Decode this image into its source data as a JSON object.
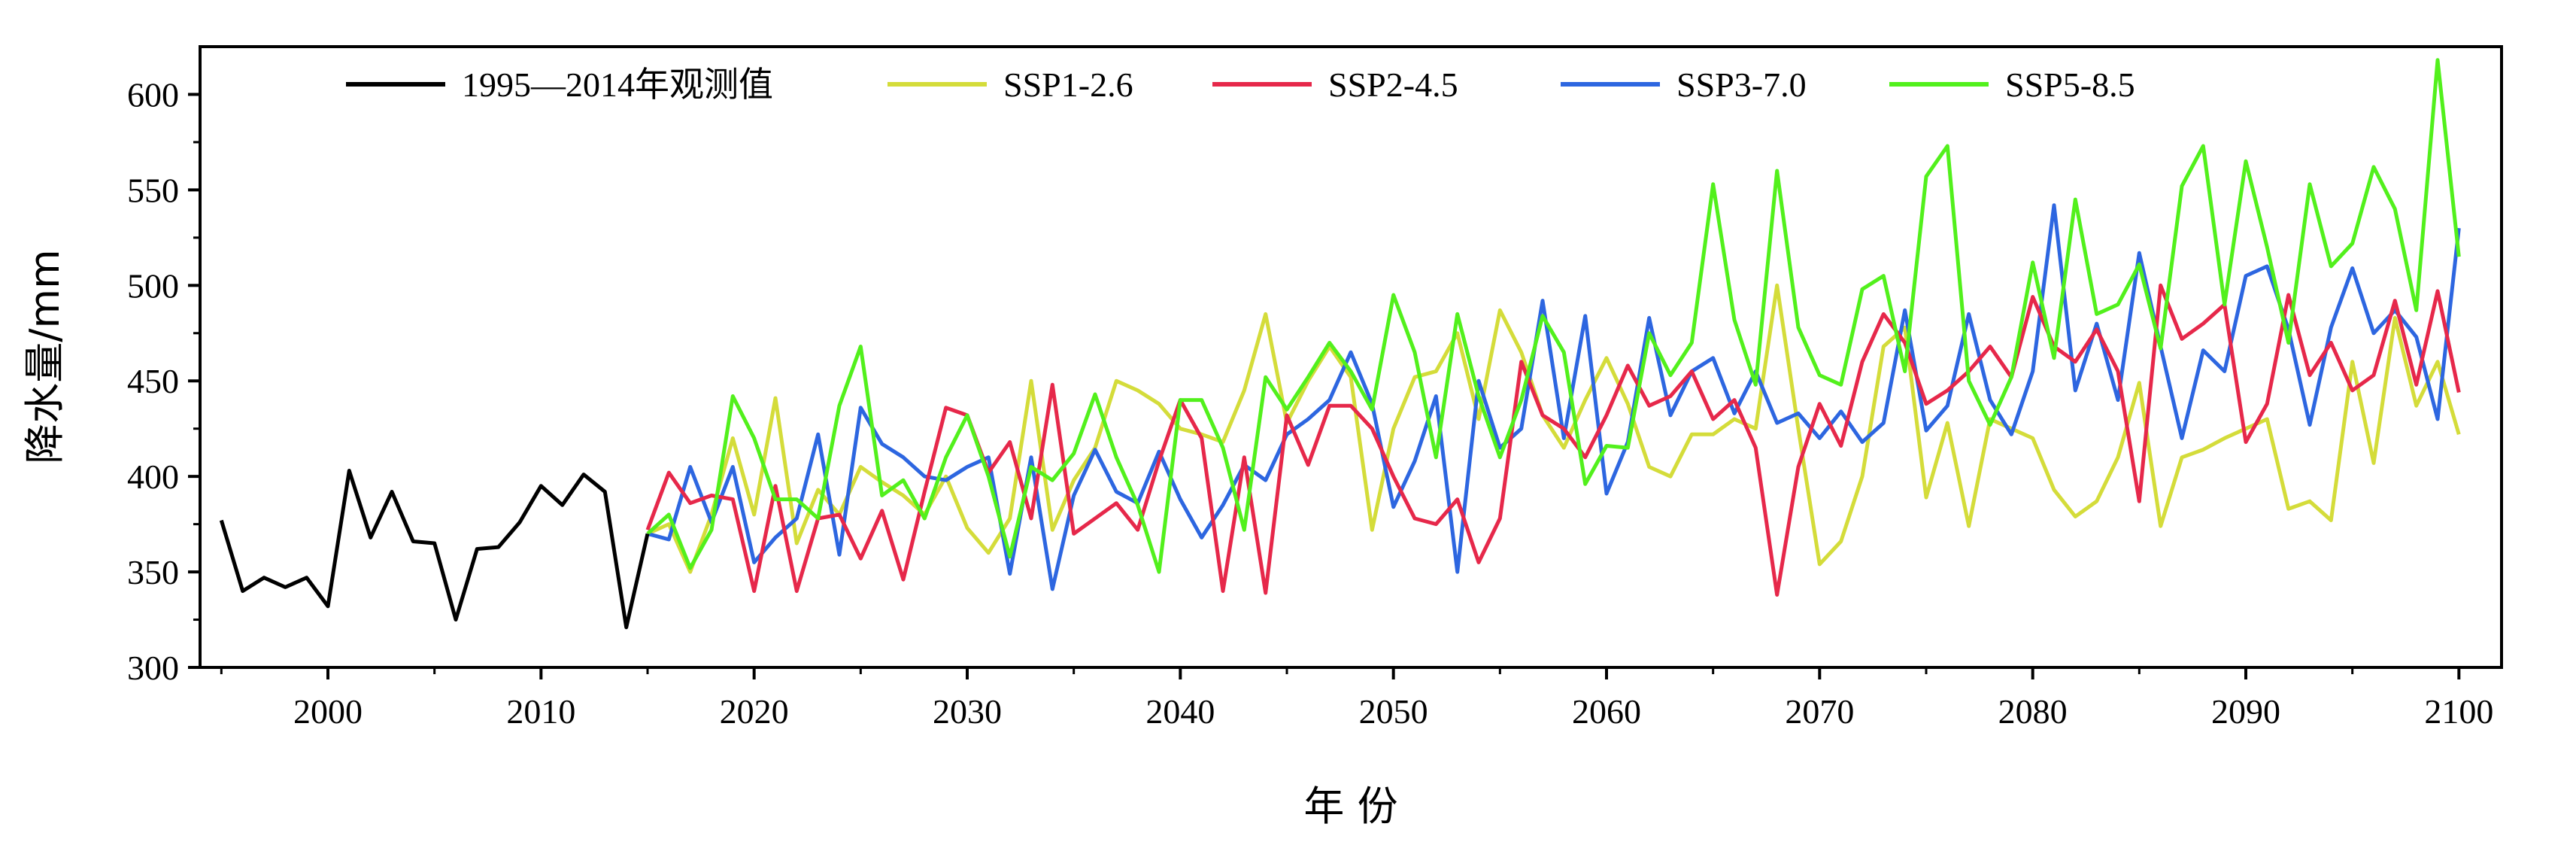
{
  "chart_data": {
    "type": "line",
    "title": "",
    "xlabel": "年 份",
    "ylabel": "降水量/mm",
    "xlim": [
      1994,
      2102
    ],
    "ylim": [
      300,
      625
    ],
    "xticks": [
      2000,
      2010,
      2020,
      2030,
      2040,
      2050,
      2060,
      2070,
      2080,
      2090,
      2100
    ],
    "yticks": [
      300,
      350,
      400,
      450,
      500,
      550,
      600
    ],
    "legend_position": "top",
    "series": [
      {
        "name": "1995—2014年观测值",
        "color": "#000000",
        "x": [
          1995,
          1996,
          1997,
          1998,
          1999,
          2000,
          2001,
          2002,
          2003,
          2004,
          2005,
          2006,
          2007,
          2008,
          2009,
          2010,
          2011,
          2012,
          2013,
          2014,
          2015
        ],
        "values": [
          377,
          340,
          347,
          342,
          347,
          332,
          403,
          368,
          392,
          366,
          365,
          325,
          362,
          363,
          376,
          395,
          385,
          401,
          392,
          321,
          370
        ]
      },
      {
        "name": "SSP1-2.6",
        "color": "#d4dc3a",
        "x": [
          2015,
          2016,
          2017,
          2018,
          2019,
          2020,
          2021,
          2022,
          2023,
          2024,
          2025,
          2026,
          2027,
          2028,
          2029,
          2030,
          2031,
          2032,
          2033,
          2034,
          2035,
          2036,
          2037,
          2038,
          2039,
          2040,
          2041,
          2042,
          2043,
          2044,
          2045,
          2046,
          2047,
          2048,
          2049,
          2050,
          2051,
          2052,
          2053,
          2054,
          2055,
          2056,
          2057,
          2058,
          2059,
          2060,
          2061,
          2062,
          2063,
          2064,
          2065,
          2066,
          2067,
          2068,
          2069,
          2070,
          2071,
          2072,
          2073,
          2074,
          2075,
          2076,
          2077,
          2078,
          2079,
          2080,
          2081,
          2082,
          2083,
          2084,
          2085,
          2086,
          2087,
          2088,
          2089,
          2090,
          2091,
          2092,
          2093,
          2094,
          2095,
          2096,
          2097,
          2098,
          2099,
          2100
        ],
        "values": [
          370,
          375,
          350,
          380,
          420,
          380,
          441,
          365,
          393,
          380,
          405,
          397,
          390,
          380,
          400,
          373,
          360,
          378,
          450,
          372,
          398,
          415,
          450,
          445,
          438,
          425,
          422,
          418,
          445,
          485,
          428,
          450,
          468,
          452,
          372,
          425,
          452,
          455,
          475,
          430,
          487,
          465,
          432,
          415,
          440,
          462,
          438,
          405,
          400,
          422,
          422,
          430,
          425,
          500,
          425,
          354,
          366,
          400,
          468,
          478,
          389,
          428,
          374,
          430,
          425,
          420,
          393,
          379,
          387,
          410,
          449,
          374,
          410,
          414,
          420,
          425,
          430,
          383,
          387,
          377,
          460,
          407,
          483,
          437,
          460,
          422
        ]
      },
      {
        "name": "SSP2-4.5",
        "color": "#e6284a",
        "x": [
          2015,
          2016,
          2017,
          2018,
          2019,
          2020,
          2021,
          2022,
          2023,
          2024,
          2025,
          2026,
          2027,
          2028,
          2029,
          2030,
          2031,
          2032,
          2033,
          2034,
          2035,
          2036,
          2037,
          2038,
          2039,
          2040,
          2041,
          2042,
          2043,
          2044,
          2045,
          2046,
          2047,
          2048,
          2049,
          2050,
          2051,
          2052,
          2053,
          2054,
          2055,
          2056,
          2057,
          2058,
          2059,
          2060,
          2061,
          2062,
          2063,
          2064,
          2065,
          2066,
          2067,
          2068,
          2069,
          2070,
          2071,
          2072,
          2073,
          2074,
          2075,
          2076,
          2077,
          2078,
          2079,
          2080,
          2081,
          2082,
          2083,
          2084,
          2085,
          2086,
          2087,
          2088,
          2089,
          2090,
          2091,
          2092,
          2093,
          2094,
          2095,
          2096,
          2097,
          2098,
          2099,
          2100
        ],
        "values": [
          372,
          402,
          386,
          390,
          388,
          340,
          395,
          340,
          378,
          380,
          357,
          382,
          346,
          392,
          436,
          432,
          402,
          418,
          378,
          448,
          370,
          378,
          386,
          372,
          408,
          440,
          420,
          340,
          410,
          339,
          432,
          406,
          437,
          437,
          425,
          400,
          378,
          375,
          388,
          355,
          378,
          460,
          432,
          425,
          410,
          432,
          458,
          437,
          442,
          455,
          430,
          440,
          415,
          338,
          405,
          438,
          416,
          460,
          485,
          470,
          438,
          445,
          455,
          468,
          452,
          494,
          468,
          460,
          477,
          455,
          387,
          500,
          472,
          480,
          490,
          418,
          438,
          495,
          453,
          470,
          445,
          453,
          492,
          448,
          497,
          444
        ]
      },
      {
        "name": "SSP3-7.0",
        "color": "#2d66e0",
        "x": [
          2015,
          2016,
          2017,
          2018,
          2019,
          2020,
          2021,
          2022,
          2023,
          2024,
          2025,
          2026,
          2027,
          2028,
          2029,
          2030,
          2031,
          2032,
          2033,
          2034,
          2035,
          2036,
          2037,
          2038,
          2039,
          2040,
          2041,
          2042,
          2043,
          2044,
          2045,
          2046,
          2047,
          2048,
          2049,
          2050,
          2051,
          2052,
          2053,
          2054,
          2055,
          2056,
          2057,
          2058,
          2059,
          2060,
          2061,
          2062,
          2063,
          2064,
          2065,
          2066,
          2067,
          2068,
          2069,
          2070,
          2071,
          2072,
          2073,
          2074,
          2075,
          2076,
          2077,
          2078,
          2079,
          2080,
          2081,
          2082,
          2083,
          2084,
          2085,
          2086,
          2087,
          2088,
          2089,
          2090,
          2091,
          2092,
          2093,
          2094,
          2095,
          2096,
          2097,
          2098,
          2099,
          2100
        ],
        "values": [
          370,
          367,
          405,
          376,
          405,
          355,
          368,
          378,
          422,
          359,
          436,
          417,
          410,
          400,
          398,
          405,
          410,
          349,
          410,
          341,
          390,
          414,
          392,
          386,
          413,
          388,
          368,
          385,
          406,
          398,
          422,
          430,
          440,
          465,
          438,
          384,
          408,
          442,
          350,
          450,
          415,
          425,
          492,
          420,
          484,
          391,
          418,
          483,
          432,
          455,
          462,
          433,
          455,
          428,
          433,
          420,
          434,
          418,
          428,
          487,
          424,
          437,
          485,
          440,
          422,
          455,
          542,
          445,
          480,
          440,
          517,
          468,
          420,
          466,
          455,
          505,
          510,
          477,
          427,
          478,
          509,
          475,
          487,
          473,
          430,
          530
        ]
      },
      {
        "name": "SSP5-8.5",
        "color": "#52f01c",
        "x": [
          2015,
          2016,
          2017,
          2018,
          2019,
          2020,
          2021,
          2022,
          2023,
          2024,
          2025,
          2026,
          2027,
          2028,
          2029,
          2030,
          2031,
          2032,
          2033,
          2034,
          2035,
          2036,
          2037,
          2038,
          2039,
          2040,
          2041,
          2042,
          2043,
          2044,
          2045,
          2046,
          2047,
          2048,
          2049,
          2050,
          2051,
          2052,
          2053,
          2054,
          2055,
          2056,
          2057,
          2058,
          2059,
          2060,
          2061,
          2062,
          2063,
          2064,
          2065,
          2066,
          2067,
          2068,
          2069,
          2070,
          2071,
          2072,
          2073,
          2074,
          2075,
          2076,
          2077,
          2078,
          2079,
          2080,
          2081,
          2082,
          2083,
          2084,
          2085,
          2086,
          2087,
          2088,
          2089,
          2090,
          2091,
          2092,
          2093,
          2094,
          2095,
          2096,
          2097,
          2098,
          2099,
          2100
        ],
        "values": [
          370,
          380,
          352,
          372,
          442,
          420,
          388,
          388,
          378,
          437,
          468,
          390,
          398,
          378,
          410,
          432,
          400,
          358,
          405,
          398,
          412,
          443,
          410,
          385,
          350,
          440,
          440,
          415,
          372,
          452,
          435,
          452,
          470,
          455,
          435,
          495,
          465,
          410,
          485,
          442,
          410,
          440,
          484,
          465,
          396,
          416,
          415,
          475,
          453,
          470,
          553,
          482,
          448,
          560,
          478,
          453,
          448,
          498,
          505,
          455,
          557,
          573,
          450,
          427,
          452,
          512,
          462,
          545,
          485,
          490,
          511,
          467,
          552,
          573,
          490,
          565,
          520,
          470,
          553,
          510,
          522,
          562,
          540,
          487,
          618,
          515
        ]
      }
    ]
  }
}
